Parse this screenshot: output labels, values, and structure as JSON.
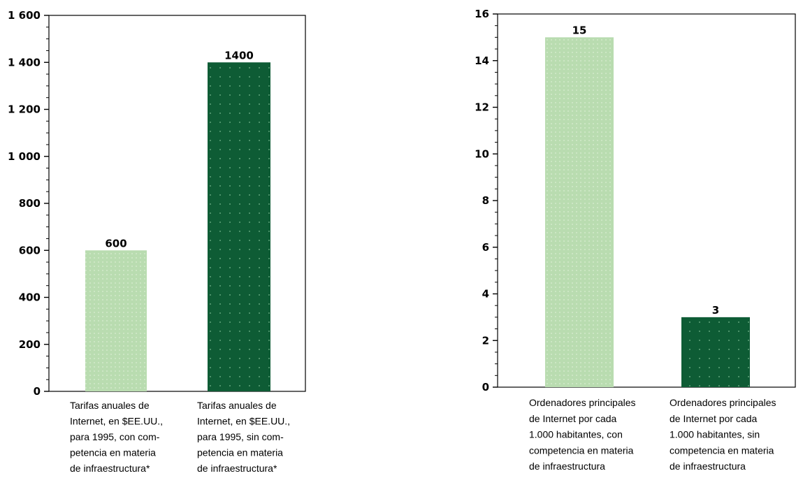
{
  "chart_data": [
    {
      "type": "bar",
      "title": "",
      "xlabel": "",
      "ylabel": "",
      "ylim": [
        0,
        1600
      ],
      "ytick_labels": [
        "0",
        "200",
        "400",
        "600",
        "800",
        "1 000",
        "1 200",
        "1 400",
        "1 600"
      ],
      "grid": false,
      "categories": [
        [
          "Tarifas anuales de",
          "Internet, en $EE.UU.,",
          "para 1995, con com-",
          "petencia en materia",
          "de infraestructura*"
        ],
        [
          "Tarifas anuales de",
          "Internet, en $EE.UU.,",
          "para 1995, sin com-",
          "petencia en materia",
          "de infraestructura*"
        ]
      ],
      "values": [
        600,
        1400
      ],
      "value_labels": [
        "600",
        "1400"
      ],
      "bar_colors": [
        "#b9dcb0",
        "#0e5c35"
      ]
    },
    {
      "type": "bar",
      "title": "",
      "xlabel": "",
      "ylabel": "",
      "ylim": [
        0,
        16
      ],
      "ytick_labels": [
        "0",
        "2",
        "4",
        "6",
        "8",
        "10",
        "12",
        "14",
        "16"
      ],
      "grid": false,
      "categories": [
        [
          "Ordenadores principales",
          "de Internet por cada",
          "1.000 habitantes, con",
          "competencia en materia",
          "de infraestructura"
        ],
        [
          "Ordenadores principales",
          "de Internet por cada",
          "1.000 habitantes, sin",
          "competencia en materia",
          "de infraestructura"
        ]
      ],
      "values": [
        15,
        3
      ],
      "value_labels": [
        "15",
        "3"
      ],
      "bar_colors": [
        "#b9dcb0",
        "#0e5c35"
      ]
    }
  ]
}
